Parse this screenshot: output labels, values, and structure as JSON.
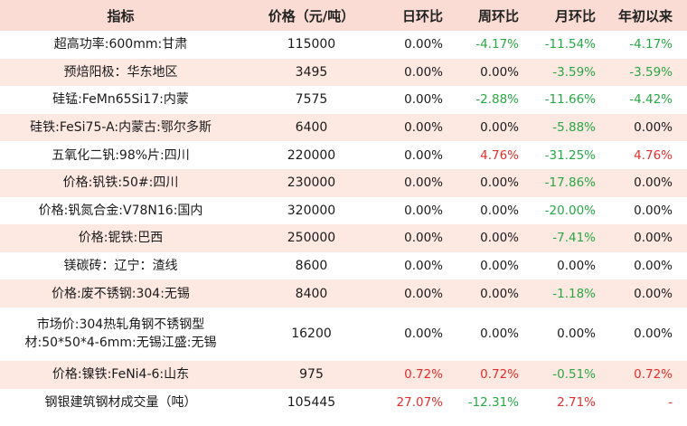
{
  "header": {
    "name": "指标",
    "price": "价格（元/吨）",
    "day": "日环比",
    "week": "周环比",
    "month": "月环比",
    "ytd": "年初以来"
  },
  "rows": [
    {
      "name": "超高功率:600mm:甘肃",
      "price": "115000",
      "day": "0.00%",
      "week": "-4.17%",
      "month": "-11.54%",
      "ytd": "-4.17%",
      "day_t": "flat",
      "week_t": "neg",
      "month_t": "neg",
      "ytd_t": "neg"
    },
    {
      "name": "预焙阳极：华东地区",
      "price": "3495",
      "day": "0.00%",
      "week": "0.00%",
      "month": "-3.59%",
      "ytd": "-3.59%",
      "day_t": "flat",
      "week_t": "flat",
      "month_t": "neg",
      "ytd_t": "neg"
    },
    {
      "name": "硅锰:FeMn65Si17:内蒙",
      "price": "7575",
      "day": "0.00%",
      "week": "-2.88%",
      "month": "-11.66%",
      "ytd": "-4.42%",
      "day_t": "flat",
      "week_t": "neg",
      "month_t": "neg",
      "ytd_t": "neg"
    },
    {
      "name": "硅铁:FeSi75-A:内蒙古:鄂尔多斯",
      "price": "6400",
      "day": "0.00%",
      "week": "0.00%",
      "month": "-5.88%",
      "ytd": "0.00%",
      "day_t": "flat",
      "week_t": "flat",
      "month_t": "neg",
      "ytd_t": "flat"
    },
    {
      "name": "五氧化二钒:98%片:四川",
      "price": "220000",
      "day": "0.00%",
      "week": "4.76%",
      "month": "-31.25%",
      "ytd": "4.76%",
      "day_t": "flat",
      "week_t": "pos",
      "month_t": "neg",
      "ytd_t": "pos"
    },
    {
      "name": "价格:钒铁:50#:四川",
      "price": "230000",
      "day": "0.00%",
      "week": "0.00%",
      "month": "-17.86%",
      "ytd": "0.00%",
      "day_t": "flat",
      "week_t": "flat",
      "month_t": "neg",
      "ytd_t": "flat"
    },
    {
      "name": "价格:钒氮合金:V78N16:国内",
      "price": "320000",
      "day": "0.00%",
      "week": "0.00%",
      "month": "-20.00%",
      "ytd": "0.00%",
      "day_t": "flat",
      "week_t": "flat",
      "month_t": "neg",
      "ytd_t": "flat"
    },
    {
      "name": "价格:铌铁:巴西",
      "price": "250000",
      "day": "0.00%",
      "week": "0.00%",
      "month": "-7.41%",
      "ytd": "0.00%",
      "day_t": "flat",
      "week_t": "flat",
      "month_t": "neg",
      "ytd_t": "flat"
    },
    {
      "name": "镁碳砖：辽宁：渣线",
      "price": "8600",
      "day": "0.00%",
      "week": "0.00%",
      "month": "0.00%",
      "ytd": "0.00%",
      "day_t": "flat",
      "week_t": "flat",
      "month_t": "flat",
      "ytd_t": "flat"
    },
    {
      "name": "价格:废不锈钢:304:无锡",
      "price": "8400",
      "day": "0.00%",
      "week": "0.00%",
      "month": "-1.18%",
      "ytd": "0.00%",
      "day_t": "flat",
      "week_t": "flat",
      "month_t": "neg",
      "ytd_t": "flat"
    },
    {
      "name": "市场价:304热轧角钢不锈钢型材:50*50*4-6mm:无锡江盛:无锡",
      "price": "16200",
      "day": "0.00%",
      "week": "0.00%",
      "month": "0.00%",
      "ytd": "0.00%",
      "day_t": "flat",
      "week_t": "flat",
      "month_t": "flat",
      "ytd_t": "flat",
      "tall": true
    },
    {
      "name": "价格:镍铁:FeNi4-6:山东",
      "price": "975",
      "day": "0.72%",
      "week": "0.72%",
      "month": "-0.51%",
      "ytd": "0.72%",
      "day_t": "pos",
      "week_t": "pos",
      "month_t": "neg",
      "ytd_t": "pos"
    },
    {
      "name": "钢银建筑钢材成交量（吨）",
      "price": "105445",
      "day": "27.07%",
      "week": "-12.31%",
      "month": "2.71%",
      "ytd": "-",
      "day_t": "pos",
      "week_t": "neg",
      "month_t": "pos",
      "ytd_t": "dash"
    }
  ]
}
